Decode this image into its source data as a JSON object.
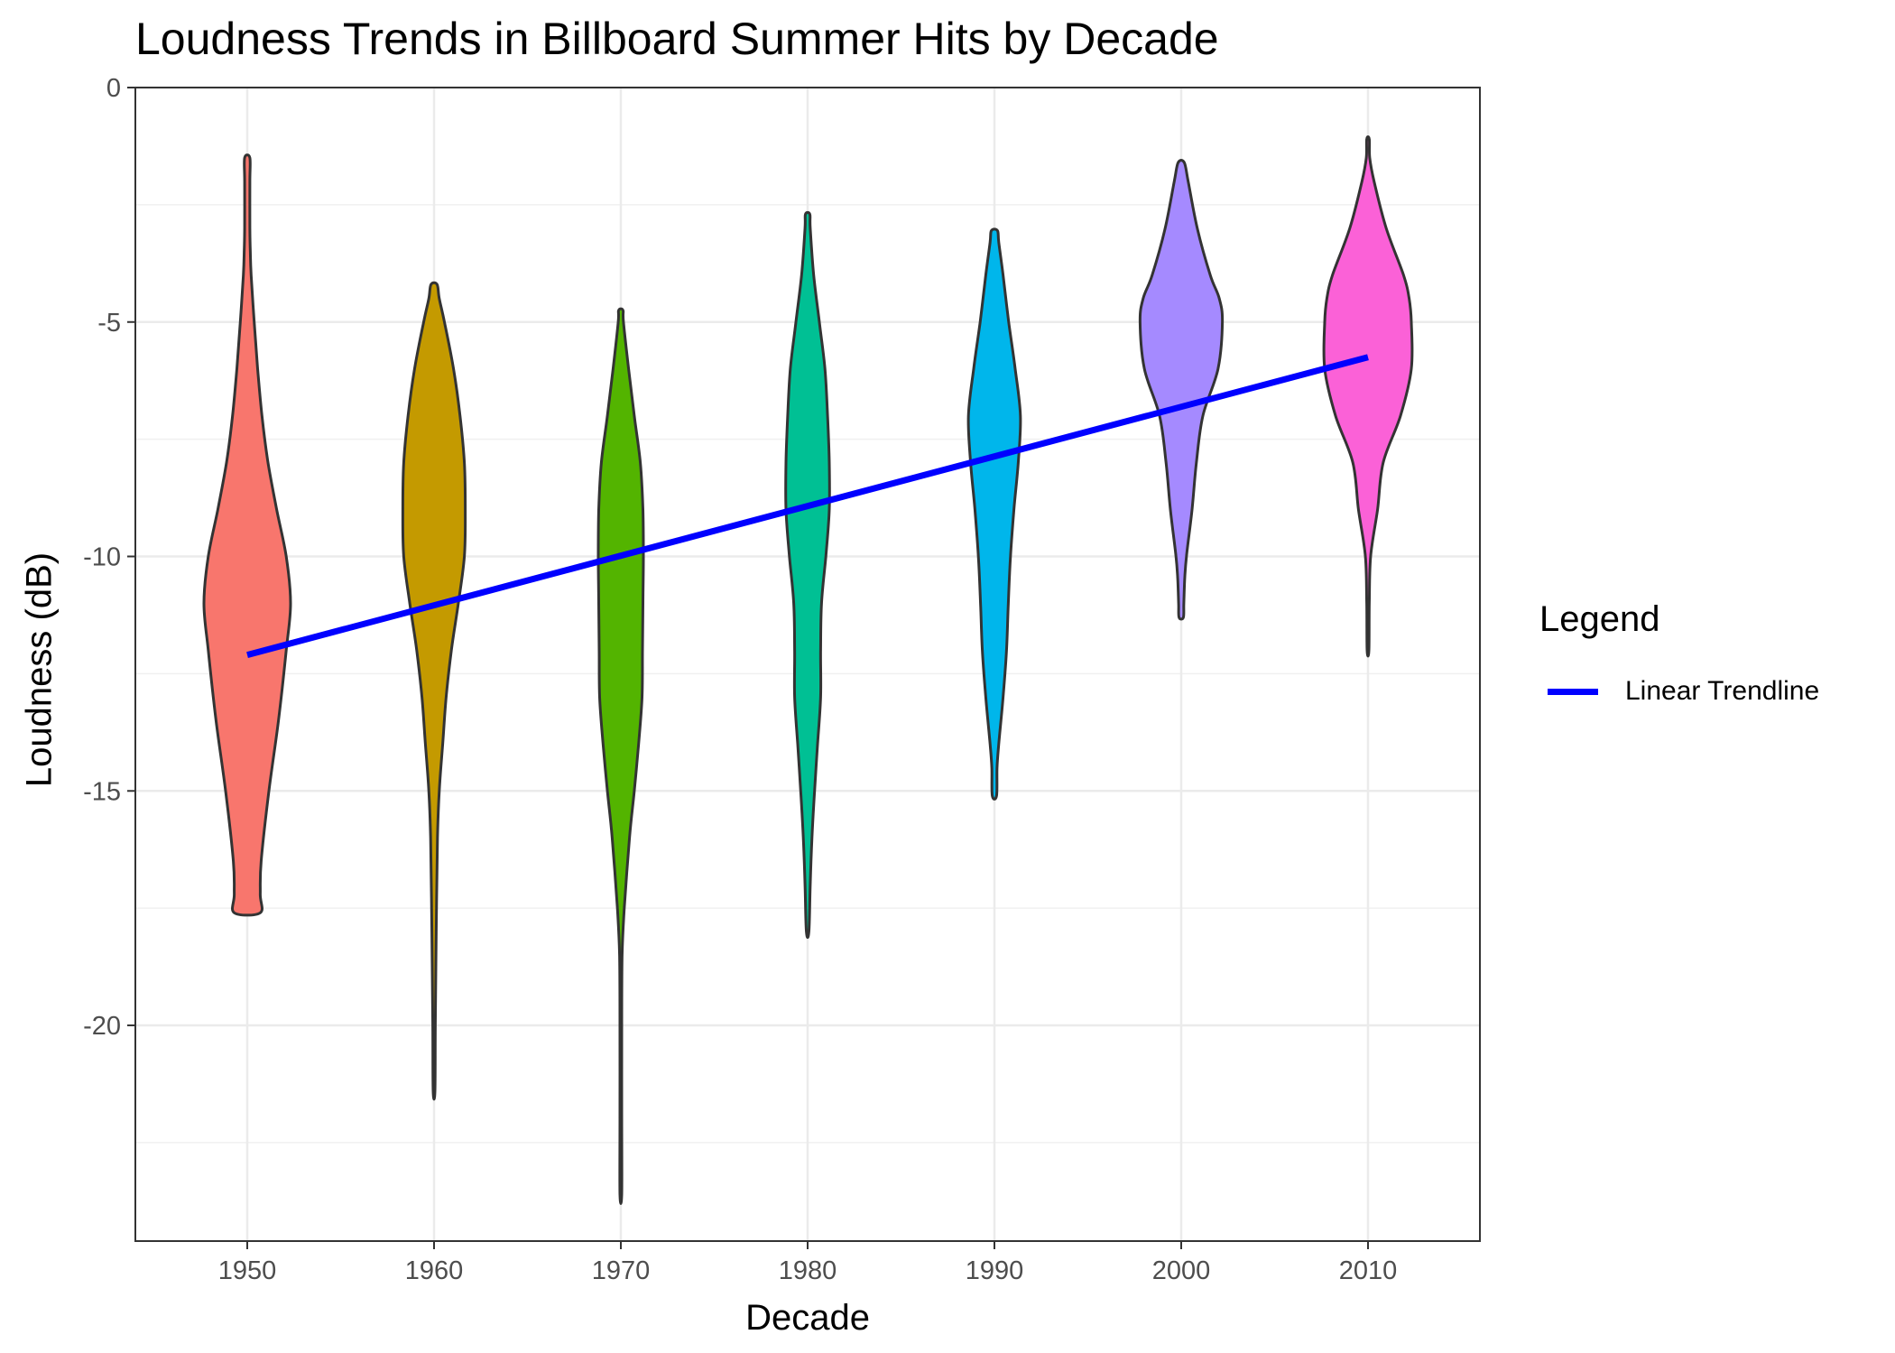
{
  "chart_data": {
    "type": "violin",
    "title": "Loudness Trends in Billboard Summer Hits by Decade",
    "xlabel": "Decade",
    "ylabel": "Loudness (dB)",
    "categories": [
      "1950",
      "1960",
      "1970",
      "1980",
      "1990",
      "2000",
      "2010"
    ],
    "ylim": [
      -24.6,
      0
    ],
    "yticks": [
      0,
      -5,
      -10,
      -15,
      -20
    ],
    "ytick_labels": [
      "0",
      "-5",
      "-10",
      "-15",
      "-20"
    ],
    "grid": true,
    "legend": {
      "title": "Legend",
      "position": "right",
      "entries": [
        "Linear Trendline"
      ]
    },
    "violins": [
      {
        "category": "1950",
        "color": "#F8766D",
        "min": -17.6,
        "max": -1.5,
        "profile": [
          [
            -17.6,
            0.3
          ],
          [
            -17.2,
            0.3
          ],
          [
            -16.5,
            0.32
          ],
          [
            -15.0,
            0.5
          ],
          [
            -13.5,
            0.72
          ],
          [
            -12.0,
            0.9
          ],
          [
            -11.0,
            1.0
          ],
          [
            -10.0,
            0.9
          ],
          [
            -9.0,
            0.68
          ],
          [
            -8.0,
            0.48
          ],
          [
            -7.0,
            0.34
          ],
          [
            -6.0,
            0.24
          ],
          [
            -5.0,
            0.16
          ],
          [
            -4.0,
            0.09
          ],
          [
            -3.5,
            0.07
          ],
          [
            -3.0,
            0.06
          ],
          [
            -2.0,
            0.06
          ],
          [
            -1.5,
            0.06
          ]
        ]
      },
      {
        "category": "1960",
        "color": "#C49A00",
        "min": -21.4,
        "max": -4.2,
        "profile": [
          [
            -21.4,
            0.02
          ],
          [
            -20.0,
            0.03
          ],
          [
            -18.0,
            0.05
          ],
          [
            -16.0,
            0.08
          ],
          [
            -15.0,
            0.12
          ],
          [
            -14.0,
            0.2
          ],
          [
            -13.0,
            0.28
          ],
          [
            -12.0,
            0.4
          ],
          [
            -11.0,
            0.56
          ],
          [
            -10.0,
            0.7
          ],
          [
            -9.0,
            0.72
          ],
          [
            -8.0,
            0.7
          ],
          [
            -7.0,
            0.6
          ],
          [
            -6.0,
            0.45
          ],
          [
            -5.0,
            0.24
          ],
          [
            -4.5,
            0.12
          ],
          [
            -4.2,
            0.07
          ]
        ]
      },
      {
        "category": "1970",
        "color": "#53B400",
        "min": -23.6,
        "max": -4.75,
        "profile": [
          [
            -23.6,
            0.02
          ],
          [
            -22.0,
            0.02
          ],
          [
            -20.0,
            0.02
          ],
          [
            -18.5,
            0.03
          ],
          [
            -17.5,
            0.08
          ],
          [
            -16.0,
            0.2
          ],
          [
            -15.0,
            0.31
          ],
          [
            -14.0,
            0.41
          ],
          [
            -13.0,
            0.49
          ],
          [
            -12.0,
            0.5
          ],
          [
            -11.0,
            0.51
          ],
          [
            -10.0,
            0.52
          ],
          [
            -9.0,
            0.51
          ],
          [
            -8.0,
            0.45
          ],
          [
            -7.0,
            0.31
          ],
          [
            -6.0,
            0.18
          ],
          [
            -5.0,
            0.06
          ],
          [
            -4.75,
            0.05
          ]
        ]
      },
      {
        "category": "1980",
        "color": "#00C094",
        "min": -18.0,
        "max": -2.7,
        "profile": [
          [
            -18.0,
            0.03
          ],
          [
            -17.0,
            0.06
          ],
          [
            -16.0,
            0.1
          ],
          [
            -15.0,
            0.16
          ],
          [
            -14.0,
            0.23
          ],
          [
            -13.0,
            0.3
          ],
          [
            -12.0,
            0.3
          ],
          [
            -11.0,
            0.32
          ],
          [
            -10.0,
            0.42
          ],
          [
            -9.0,
            0.5
          ],
          [
            -8.0,
            0.5
          ],
          [
            -7.0,
            0.46
          ],
          [
            -6.0,
            0.4
          ],
          [
            -5.0,
            0.27
          ],
          [
            -4.0,
            0.14
          ],
          [
            -3.0,
            0.06
          ],
          [
            -2.7,
            0.05
          ]
        ]
      },
      {
        "category": "1990",
        "color": "#00B6EB",
        "min": -15.1,
        "max": -3.05,
        "profile": [
          [
            -15.1,
            0.05
          ],
          [
            -14.5,
            0.06
          ],
          [
            -14.0,
            0.1
          ],
          [
            -13.0,
            0.2
          ],
          [
            -12.0,
            0.28
          ],
          [
            -11.0,
            0.32
          ],
          [
            -10.0,
            0.37
          ],
          [
            -9.0,
            0.45
          ],
          [
            -8.0,
            0.55
          ],
          [
            -7.0,
            0.6
          ],
          [
            -6.0,
            0.48
          ],
          [
            -5.0,
            0.33
          ],
          [
            -4.0,
            0.2
          ],
          [
            -3.3,
            0.1
          ],
          [
            -3.05,
            0.07
          ]
        ]
      },
      {
        "category": "2000",
        "color": "#A58AFF",
        "min": -11.3,
        "max": -1.6,
        "profile": [
          [
            -11.3,
            0.05
          ],
          [
            -11.0,
            0.06
          ],
          [
            -10.5,
            0.08
          ],
          [
            -10.0,
            0.12
          ],
          [
            -9.0,
            0.25
          ],
          [
            -8.0,
            0.35
          ],
          [
            -7.0,
            0.5
          ],
          [
            -6.0,
            0.85
          ],
          [
            -5.0,
            0.95
          ],
          [
            -4.5,
            0.88
          ],
          [
            -4.0,
            0.67
          ],
          [
            -3.0,
            0.37
          ],
          [
            -2.0,
            0.16
          ],
          [
            -1.6,
            0.07
          ]
        ]
      },
      {
        "category": "2010",
        "color": "#FB61D7",
        "min": -12.0,
        "max": -1.1,
        "profile": [
          [
            -12.0,
            0.02
          ],
          [
            -11.0,
            0.03
          ],
          [
            -10.0,
            0.06
          ],
          [
            -9.0,
            0.22
          ],
          [
            -8.0,
            0.35
          ],
          [
            -7.0,
            0.75
          ],
          [
            -6.0,
            1.0
          ],
          [
            -5.0,
            1.0
          ],
          [
            -4.5,
            0.95
          ],
          [
            -4.0,
            0.82
          ],
          [
            -3.0,
            0.42
          ],
          [
            -2.0,
            0.14
          ],
          [
            -1.5,
            0.04
          ],
          [
            -1.1,
            0.03
          ]
        ]
      }
    ],
    "trendline": {
      "name": "Linear Trendline",
      "color": "#0000FF",
      "x": [
        "1950",
        "2010"
      ],
      "y": [
        -12.1,
        -5.75
      ]
    }
  }
}
